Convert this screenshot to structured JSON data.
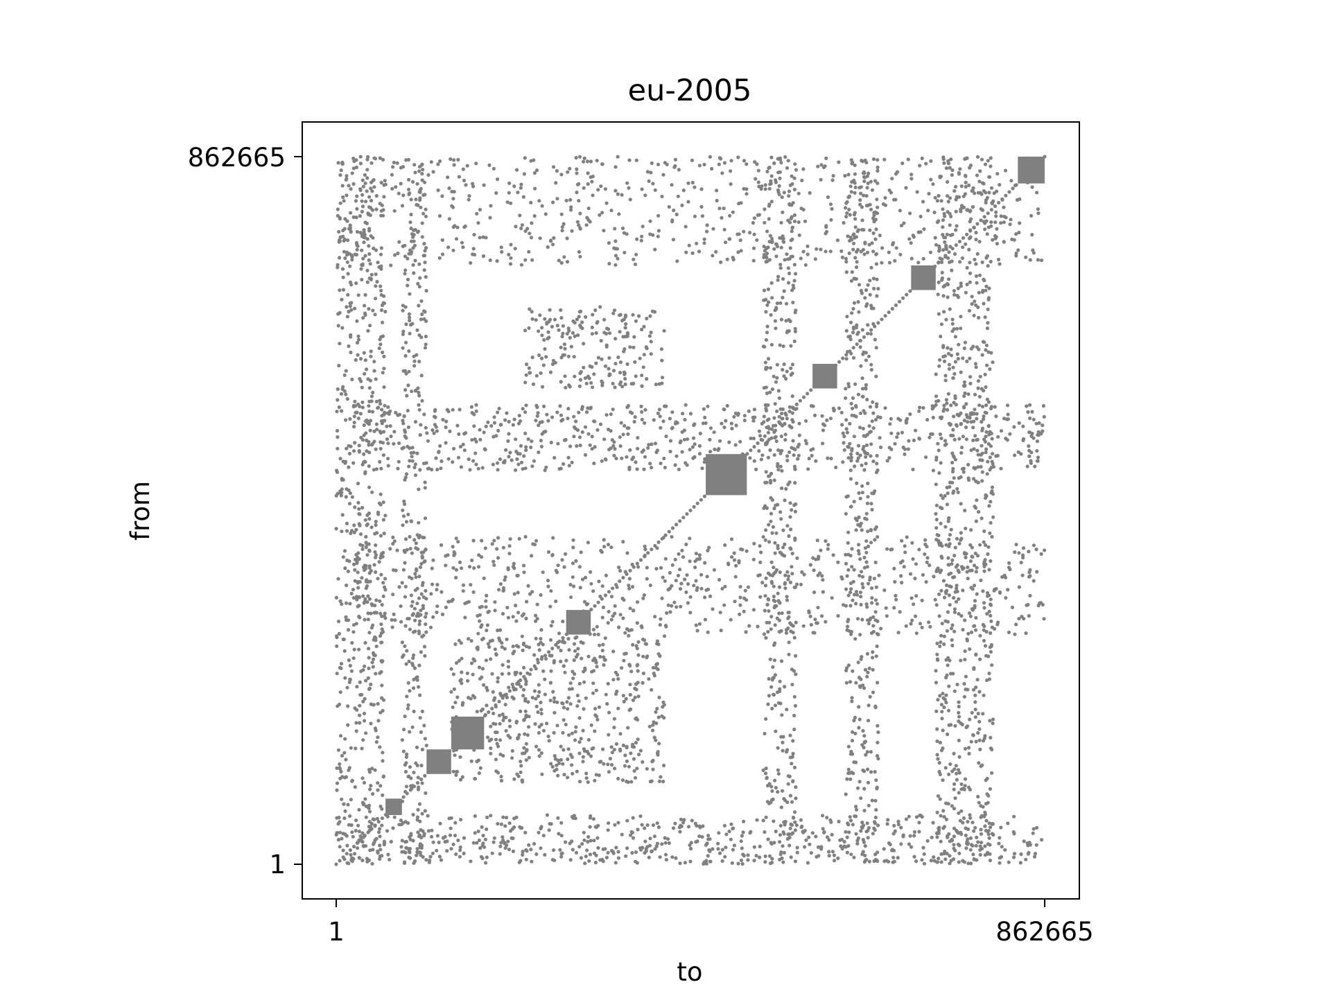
{
  "chart_data": {
    "type": "scatter",
    "title": "eu-2005",
    "xlabel": "to",
    "ylabel": "from",
    "xlim": [
      1,
      862665
    ],
    "ylim": [
      1,
      862665
    ],
    "xticks": [
      "1",
      "862665"
    ],
    "yticks": [
      "1",
      "862665"
    ],
    "grid": false,
    "legend": "none",
    "marker_color": "#808080",
    "series": [
      {
        "dense_blocks": [
          {
            "x": [
              1,
              60000
            ],
            "y": [
              1,
              862665
            ]
          },
          {
            "x": [
              80000,
              110000
            ],
            "y": [
              1,
              862665
            ]
          },
          {
            "x": [
              520000,
              560000
            ],
            "y": [
              1,
              862665
            ]
          },
          {
            "x": [
              620000,
              660000
            ],
            "y": [
              1,
              862665
            ]
          },
          {
            "x": [
              730000,
              800000
            ],
            "y": [
              1,
              862665
            ]
          },
          {
            "x": [
              1,
              862665
            ],
            "y": [
              730000,
              862665
            ]
          },
          {
            "x": [
              1,
              862665
            ],
            "y": [
              1,
              60000
            ]
          },
          {
            "x": [
              20000,
              862665
            ],
            "y": [
              480000,
              560000
            ]
          },
          {
            "x": [
              20000,
              862665
            ],
            "y": [
              280000,
              400000
            ]
          },
          {
            "x": [
              140000,
              400000
            ],
            "y": [
              100000,
              280000
            ]
          },
          {
            "x": [
              230000,
              400000
            ],
            "y": [
              580000,
              680000
            ]
          }
        ],
        "diagonal_blocks": [
          {
            "x": [
              60000,
              80000
            ],
            "y": [
              60000,
              80000
            ]
          },
          {
            "x": [
              110000,
              140000
            ],
            "y": [
              110000,
              140000
            ]
          },
          {
            "x": [
              140000,
              180000
            ],
            "y": [
              140000,
              180000
            ]
          },
          {
            "x": [
              280000,
              310000
            ],
            "y": [
              280000,
              310000
            ]
          },
          {
            "x": [
              450000,
              500000
            ],
            "y": [
              450000,
              500000
            ]
          },
          {
            "x": [
              580000,
              610000
            ],
            "y": [
              580000,
              610000
            ]
          },
          {
            "x": [
              700000,
              730000
            ],
            "y": [
              700000,
              730000
            ]
          },
          {
            "x": [
              830000,
              862665
            ],
            "y": [
              830000,
              862665
            ]
          }
        ]
      }
    ]
  }
}
